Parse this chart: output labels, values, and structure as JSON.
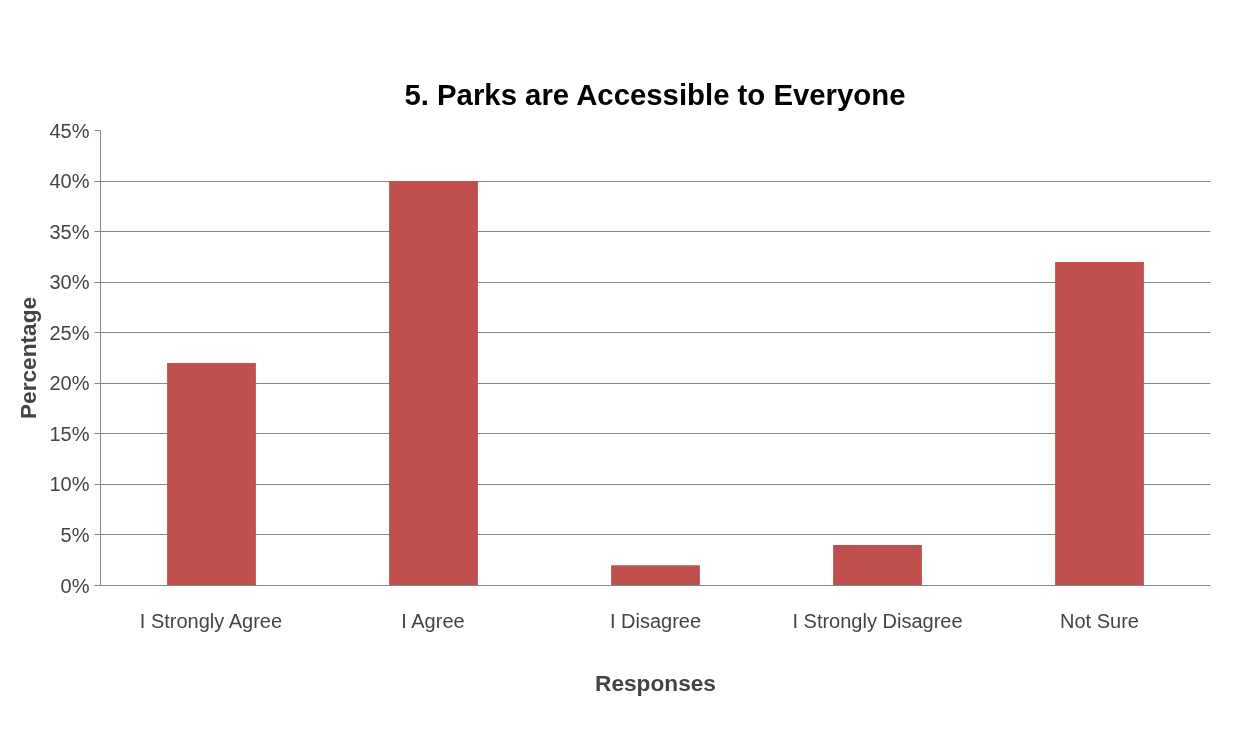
{
  "chart_data": {
    "type": "bar",
    "title": "5. Parks are Accessible to Everyone",
    "xlabel": "Responses",
    "ylabel": "Percentage",
    "categories": [
      "I Strongly Agree",
      "I Agree",
      "I Disagree",
      "I Strongly Disagree",
      "Not Sure"
    ],
    "values": [
      22,
      40,
      2,
      4,
      32
    ],
    "color": "#c0504d",
    "ylim": [
      0,
      45
    ],
    "yticks": [
      {
        "value": 0,
        "label": "0%"
      },
      {
        "value": 5,
        "label": "5%"
      },
      {
        "value": 10,
        "label": "10%"
      },
      {
        "value": 15,
        "label": "15%"
      },
      {
        "value": 20,
        "label": "20%"
      },
      {
        "value": 25,
        "label": "25%"
      },
      {
        "value": 30,
        "label": "30%"
      },
      {
        "value": 35,
        "label": "35%"
      },
      {
        "value": 40,
        "label": "40%"
      },
      {
        "value": 45,
        "label": "45%"
      }
    ],
    "grid": "y"
  }
}
